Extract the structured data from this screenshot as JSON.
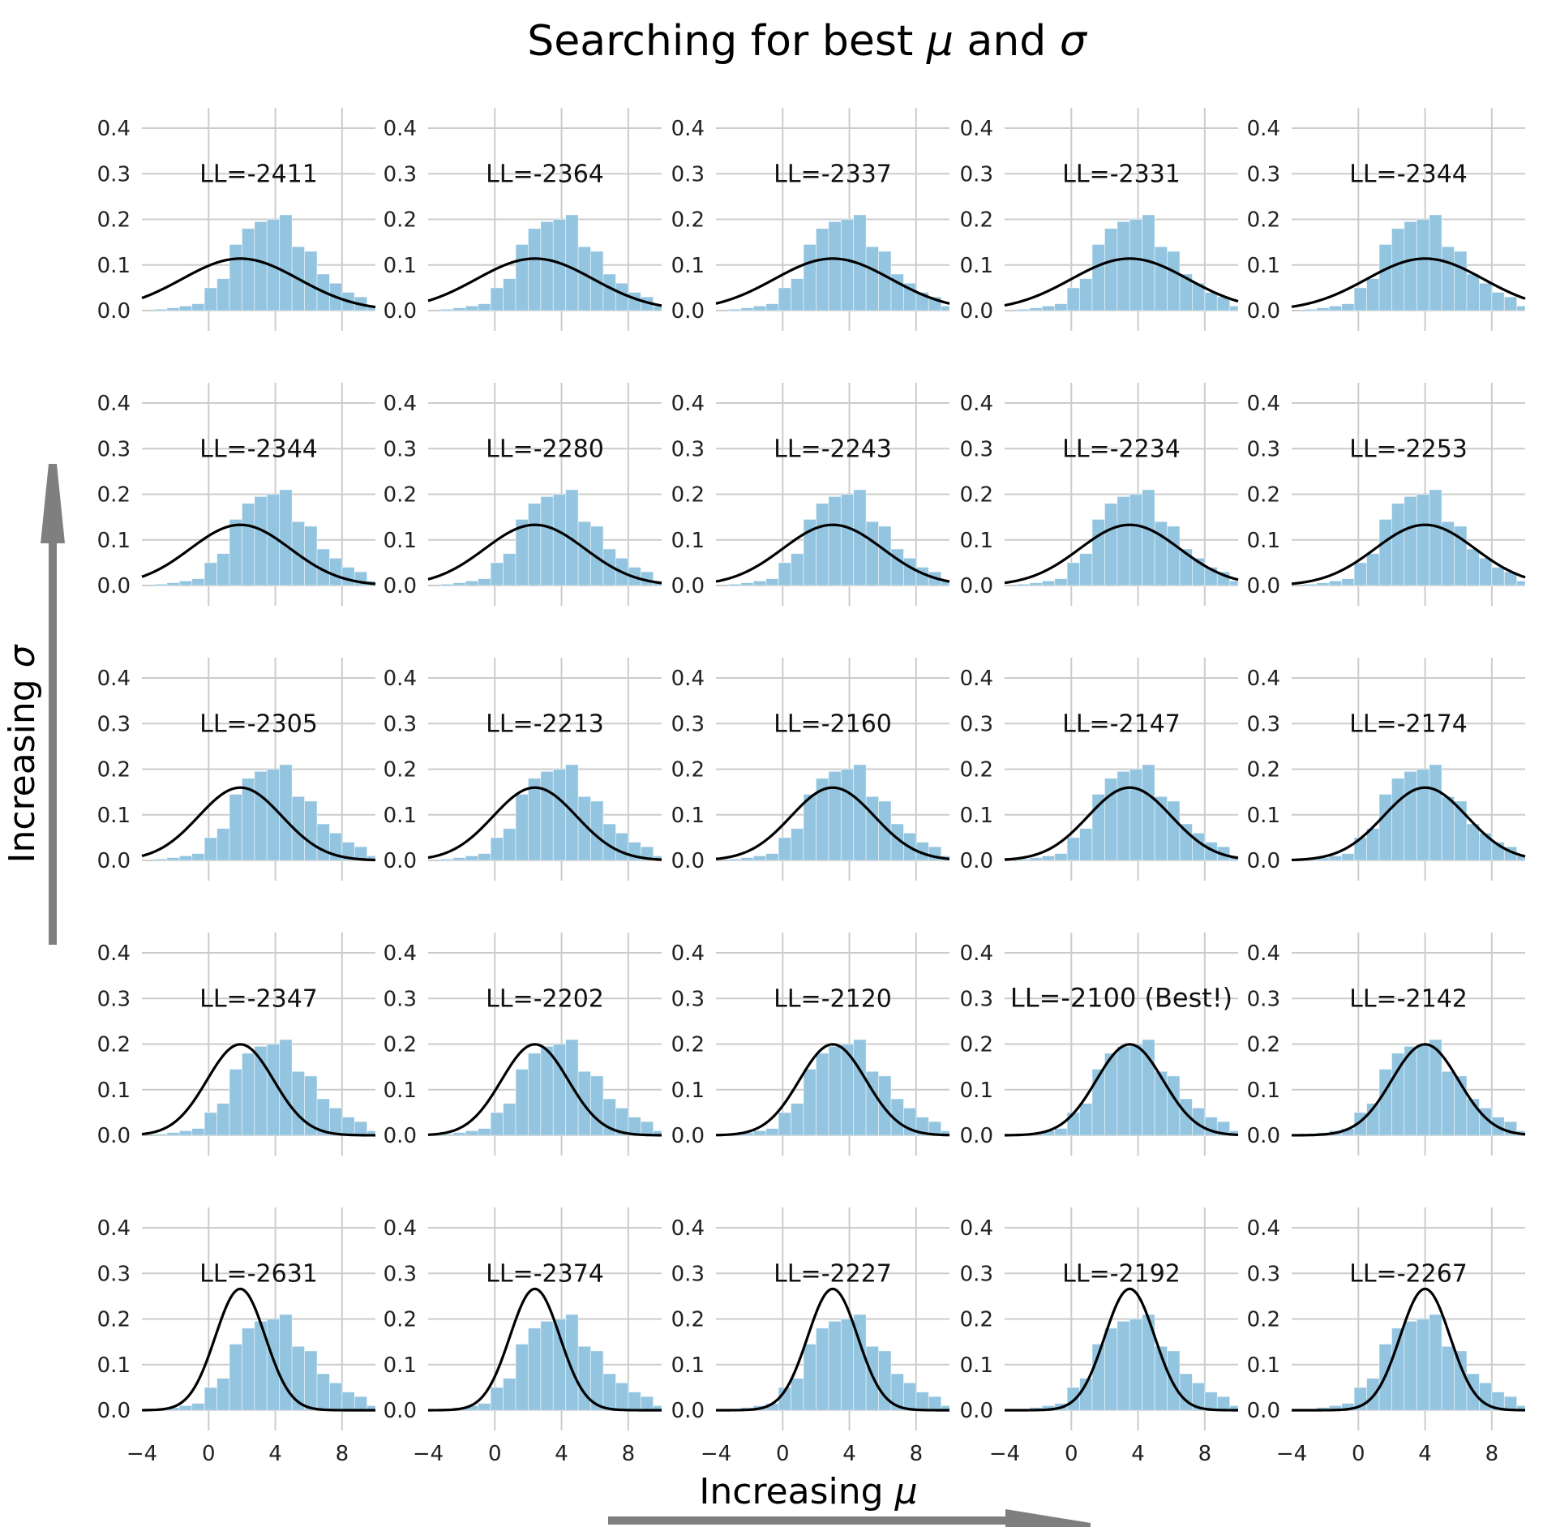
{
  "chart_data": {
    "type": "bar",
    "title_prefix": "Searching for best ",
    "title_mu": "μ",
    "title_mid": " and ",
    "title_sigma": "σ",
    "xlabel_prefix": "Increasing ",
    "xlabel_symbol": "μ",
    "ylabel_prefix": "Increasing ",
    "ylabel_symbol": "σ",
    "xlim": [
      -4,
      10
    ],
    "ylim": [
      0,
      0.4
    ],
    "x_ticks": [
      -4,
      0,
      4,
      8
    ],
    "x_tick_labels": [
      "−4",
      "0",
      "4",
      "8"
    ],
    "y_ticks": [
      0.0,
      0.1,
      0.2,
      0.3,
      0.4
    ],
    "y_tick_labels": [
      "0.0",
      "0.1",
      "0.2",
      "0.3",
      "0.4"
    ],
    "grid": true,
    "histogram": {
      "bin_edges": [
        -3.25,
        -2.5,
        -1.75,
        -1.0,
        -0.25,
        0.5,
        1.25,
        2.0,
        2.75,
        3.5,
        4.25,
        5.0,
        5.75,
        6.5,
        7.25,
        8.0,
        8.75,
        9.5,
        10.25
      ],
      "densities": [
        0.003,
        0.006,
        0.01,
        0.015,
        0.05,
        0.07,
        0.145,
        0.18,
        0.195,
        0.2,
        0.21,
        0.14,
        0.13,
        0.08,
        0.06,
        0.04,
        0.03,
        0.01
      ],
      "color": "#94c5e0"
    },
    "mu_values": [
      1.9,
      2.4,
      3.0,
      3.5,
      4.0
    ],
    "sigma_values": [
      3.5,
      3.0,
      2.5,
      2.0,
      1.5
    ],
    "curve_color": "#000000",
    "best_color": "#ff0000",
    "ll_values": [
      [
        "LL=-2411",
        "LL=-2364",
        "LL=-2337",
        "LL=-2331",
        "LL=-2344"
      ],
      [
        "LL=-2344",
        "LL=-2280",
        "LL=-2243",
        "LL=-2234",
        "LL=-2253"
      ],
      [
        "LL=-2305",
        "LL=-2213",
        "LL=-2160",
        "LL=-2147",
        "LL=-2174"
      ],
      [
        "LL=-2347",
        "LL=-2202",
        "LL=-2120",
        "LL=-2100 (Best!)",
        "LL=-2142"
      ],
      [
        "LL=-2631",
        "LL=-2374",
        "LL=-2227",
        "LL=-2192",
        "LL=-2267"
      ]
    ],
    "best_panel": {
      "row": 3,
      "col": 3
    }
  }
}
